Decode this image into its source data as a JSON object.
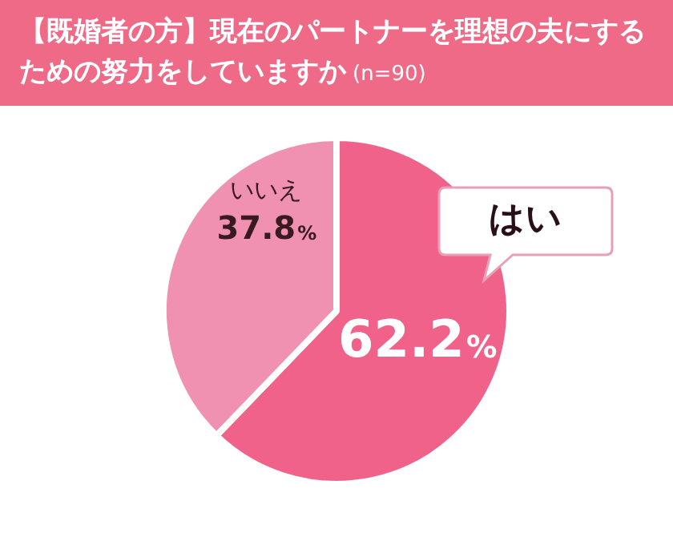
{
  "chart_data": {
    "type": "pie",
    "title": "【既婚者の方】現在のパートナーを理想の夫にするための努力をしていますか",
    "subtitle": "(n=90)",
    "categories": [
      "はい",
      "いいえ"
    ],
    "values": [
      62.2,
      37.8
    ],
    "colors": [
      "#f0628a",
      "#f091b1"
    ],
    "value_labels": [
      "62.2%",
      "37.8%"
    ],
    "legend": false
  }
}
